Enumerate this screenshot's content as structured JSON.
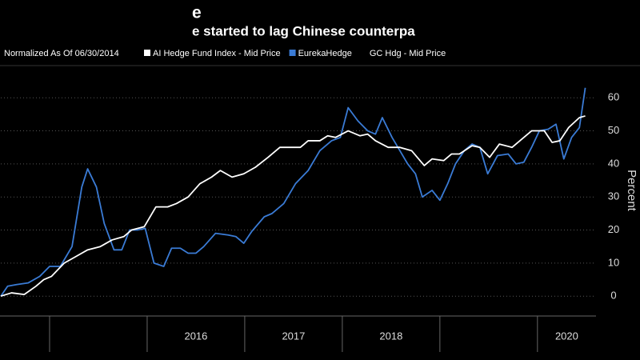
{
  "chart_data": {
    "type": "line",
    "title": "e",
    "subtitle": "e started to lag Chinese counterpa",
    "note": "Normalized As Of 06/30/2014",
    "y_label": "Percent",
    "xlim": [
      2014.5,
      2020.6
    ],
    "ylim": [
      -6,
      69
    ],
    "xticks": [
      {
        "value": 2016.5,
        "label": "2016"
      },
      {
        "value": 2017.5,
        "label": "2017"
      },
      {
        "value": 2018.5,
        "label": "2018"
      },
      {
        "value": 2020.3,
        "label": "2020"
      }
    ],
    "year_dividers": [
      2015,
      2016,
      2017,
      2018,
      2019,
      2020
    ],
    "yticks": [
      0,
      10,
      20,
      30,
      40,
      50,
      60
    ],
    "grid": true,
    "series": [
      {
        "name": "AI Hedge Fund Index - Mid Price",
        "color": "#ffffff",
        "x": [
          2014.5,
          2014.61,
          2014.74,
          2014.86,
          2014.94,
          2015.02,
          2015.15,
          2015.27,
          2015.39,
          2015.52,
          2015.64,
          2015.76,
          2015.84,
          2015.97,
          2016.09,
          2016.21,
          2016.3,
          2016.42,
          2016.54,
          2016.66,
          2016.75,
          2016.87,
          2016.99,
          2017.11,
          2017.24,
          2017.36,
          2017.44,
          2017.57,
          2017.65,
          2017.77,
          2017.85,
          2017.93,
          2018.06,
          2018.18,
          2018.26,
          2018.34,
          2018.47,
          2018.59,
          2018.71,
          2018.84,
          2018.92,
          2019.04,
          2019.12,
          2019.2,
          2019.33,
          2019.41,
          2019.51,
          2019.61,
          2019.74,
          2019.82,
          2019.94,
          2020.07,
          2020.15,
          2020.23,
          2020.32,
          2020.43,
          2020.49
        ],
        "values": [
          0,
          1,
          0.5,
          3,
          5,
          6,
          10,
          12,
          14,
          15,
          17,
          18,
          20,
          21,
          27,
          27,
          28,
          30,
          34,
          36,
          38,
          36,
          37,
          39,
          42,
          45,
          45,
          45,
          47,
          47,
          48.5,
          48,
          50,
          48.5,
          49,
          47,
          45,
          45,
          44,
          39.5,
          41.5,
          41,
          43,
          43,
          45.5,
          45,
          42,
          46,
          45,
          47,
          50,
          50,
          46.5,
          47,
          51,
          54,
          54.5
        ]
      },
      {
        "name": "EurekaHedge",
        "color": "#3a7bd5",
        "x": [
          2014.5,
          2014.57,
          2014.66,
          2014.78,
          2014.9,
          2015.0,
          2015.11,
          2015.23,
          2015.33,
          2015.39,
          2015.48,
          2015.56,
          2015.66,
          2015.74,
          2015.82,
          2015.9,
          2015.98,
          2016.07,
          2016.17,
          2016.25,
          2016.34,
          2016.42,
          2016.5,
          2016.58,
          2016.7,
          2016.83,
          2016.91,
          2016.99,
          2017.07,
          2017.2,
          2017.28,
          2017.4,
          2017.52,
          2017.65,
          2017.77,
          2017.89,
          2017.98,
          2018.06,
          2018.16,
          2018.26,
          2018.34,
          2018.41,
          2018.51,
          2018.59,
          2018.67,
          2018.75,
          2018.82,
          2018.92,
          2019.0,
          2019.08,
          2019.16,
          2019.25,
          2019.33,
          2019.41,
          2019.49,
          2019.59,
          2019.7,
          2019.78,
          2019.86,
          2019.94,
          2020.02,
          2020.11,
          2020.19,
          2020.27,
          2020.35,
          2020.43,
          2020.49
        ],
        "values": [
          0,
          3,
          3.5,
          4,
          6,
          9,
          9,
          15,
          33,
          38.5,
          33,
          22,
          14,
          14,
          20,
          20,
          20.5,
          10,
          9,
          14.5,
          14.5,
          13,
          13,
          15,
          19,
          18.5,
          18,
          16,
          19.5,
          24,
          25,
          28,
          34,
          38,
          44,
          47,
          48,
          57,
          53,
          50,
          49,
          54,
          48,
          44,
          40,
          37,
          30,
          32,
          29,
          34,
          40,
          44,
          46,
          45,
          37,
          42.5,
          43,
          40,
          40.5,
          45,
          50,
          50.5,
          52,
          41.5,
          48,
          51,
          63
        ]
      },
      {
        "name": "GC Hdg - Mid Price",
        "color": "#000000",
        "x": [],
        "values": []
      }
    ]
  }
}
